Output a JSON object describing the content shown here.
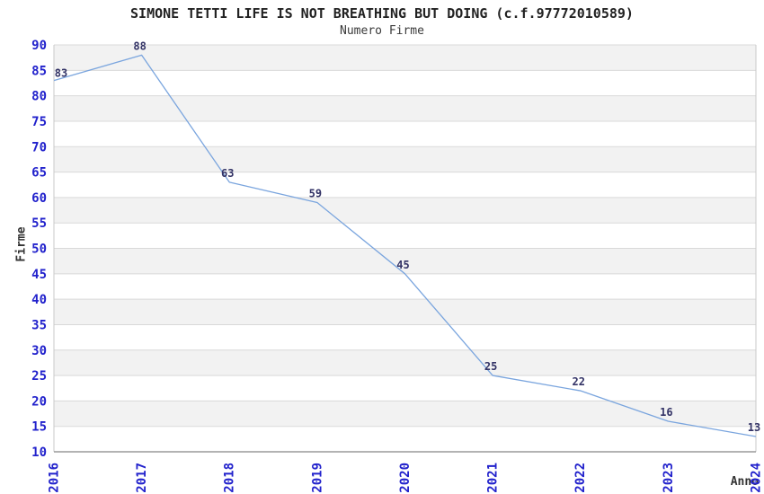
{
  "chart_data": {
    "type": "line",
    "title": "SIMONE TETTI LIFE IS NOT BREATHING BUT DOING (c.f.97772010589)",
    "subtitle": "Numero Firme",
    "xlabel": "Anno",
    "ylabel": "Firme",
    "x": [
      "2016",
      "2017",
      "2018",
      "2019",
      "2020",
      "2021",
      "2022",
      "2023",
      "2024"
    ],
    "values": [
      83,
      88,
      63,
      59,
      45,
      25,
      22,
      16,
      13
    ],
    "ylim": [
      10,
      90
    ],
    "ytick_step": 5,
    "grid": "horizontal-stripes",
    "legend": "none",
    "colors": {
      "line": "#7aa5de",
      "tick_label": "#2222cc",
      "point_label": "#333366",
      "stripe": "#f2f2f2",
      "gridline": "#d9d9d9",
      "side_border": "#c9c9c9",
      "axis": "#9a9a9a",
      "title": "#222222"
    }
  }
}
